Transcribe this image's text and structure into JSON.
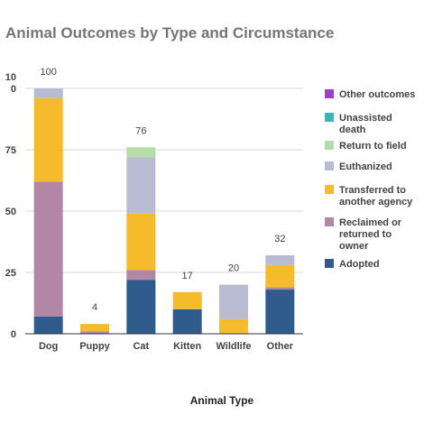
{
  "chart_data": {
    "type": "bar",
    "stacked": true,
    "title": "Animal Outcomes by Type and Circumstance",
    "xlabel": "Animal Type",
    "ylabel": "",
    "ylim": [
      0,
      100
    ],
    "yticks": [
      "0",
      "25",
      "50",
      "75",
      "10\n0"
    ],
    "ytick_values": [
      0,
      25,
      50,
      75,
      100
    ],
    "categories": [
      "Dog",
      "Puppy",
      "Cat",
      "Kitten",
      "Wildlife",
      "Other"
    ],
    "totals": [
      100,
      4,
      76,
      17,
      20,
      32
    ],
    "grid": true,
    "legend_position": "right",
    "series": [
      {
        "name": "Adopted",
        "color": "#2f5a8c",
        "values": [
          7,
          0,
          22,
          10,
          0,
          18
        ]
      },
      {
        "name": "Reclaimed or returned to owner",
        "legend_lines": [
          "Reclaimed or",
          "returned to",
          "owner"
        ],
        "color": "#b287a6",
        "values": [
          55,
          1,
          4,
          0,
          0,
          1
        ]
      },
      {
        "name": "Transferred to another agency",
        "legend_lines": [
          "Transferred to",
          "another agency"
        ],
        "color": "#f5bb2a",
        "values": [
          34,
          3,
          23,
          7,
          6,
          9
        ]
      },
      {
        "name": "Euthanized",
        "color": "#b8bbd1",
        "values": [
          4,
          0,
          23,
          0,
          14,
          4
        ]
      },
      {
        "name": "Return to field",
        "color": "#b3dca8",
        "values": [
          0,
          0,
          4,
          0,
          0,
          0
        ]
      },
      {
        "name": "Unassisted death",
        "legend_lines": [
          "Unassisted",
          "death"
        ],
        "color": "#38b5b8",
        "values": [
          0,
          0,
          0,
          0,
          0,
          0
        ]
      },
      {
        "name": "Other outcomes",
        "color": "#9b3fcc",
        "values": [
          0,
          0,
          0,
          0,
          0,
          0
        ]
      }
    ]
  }
}
